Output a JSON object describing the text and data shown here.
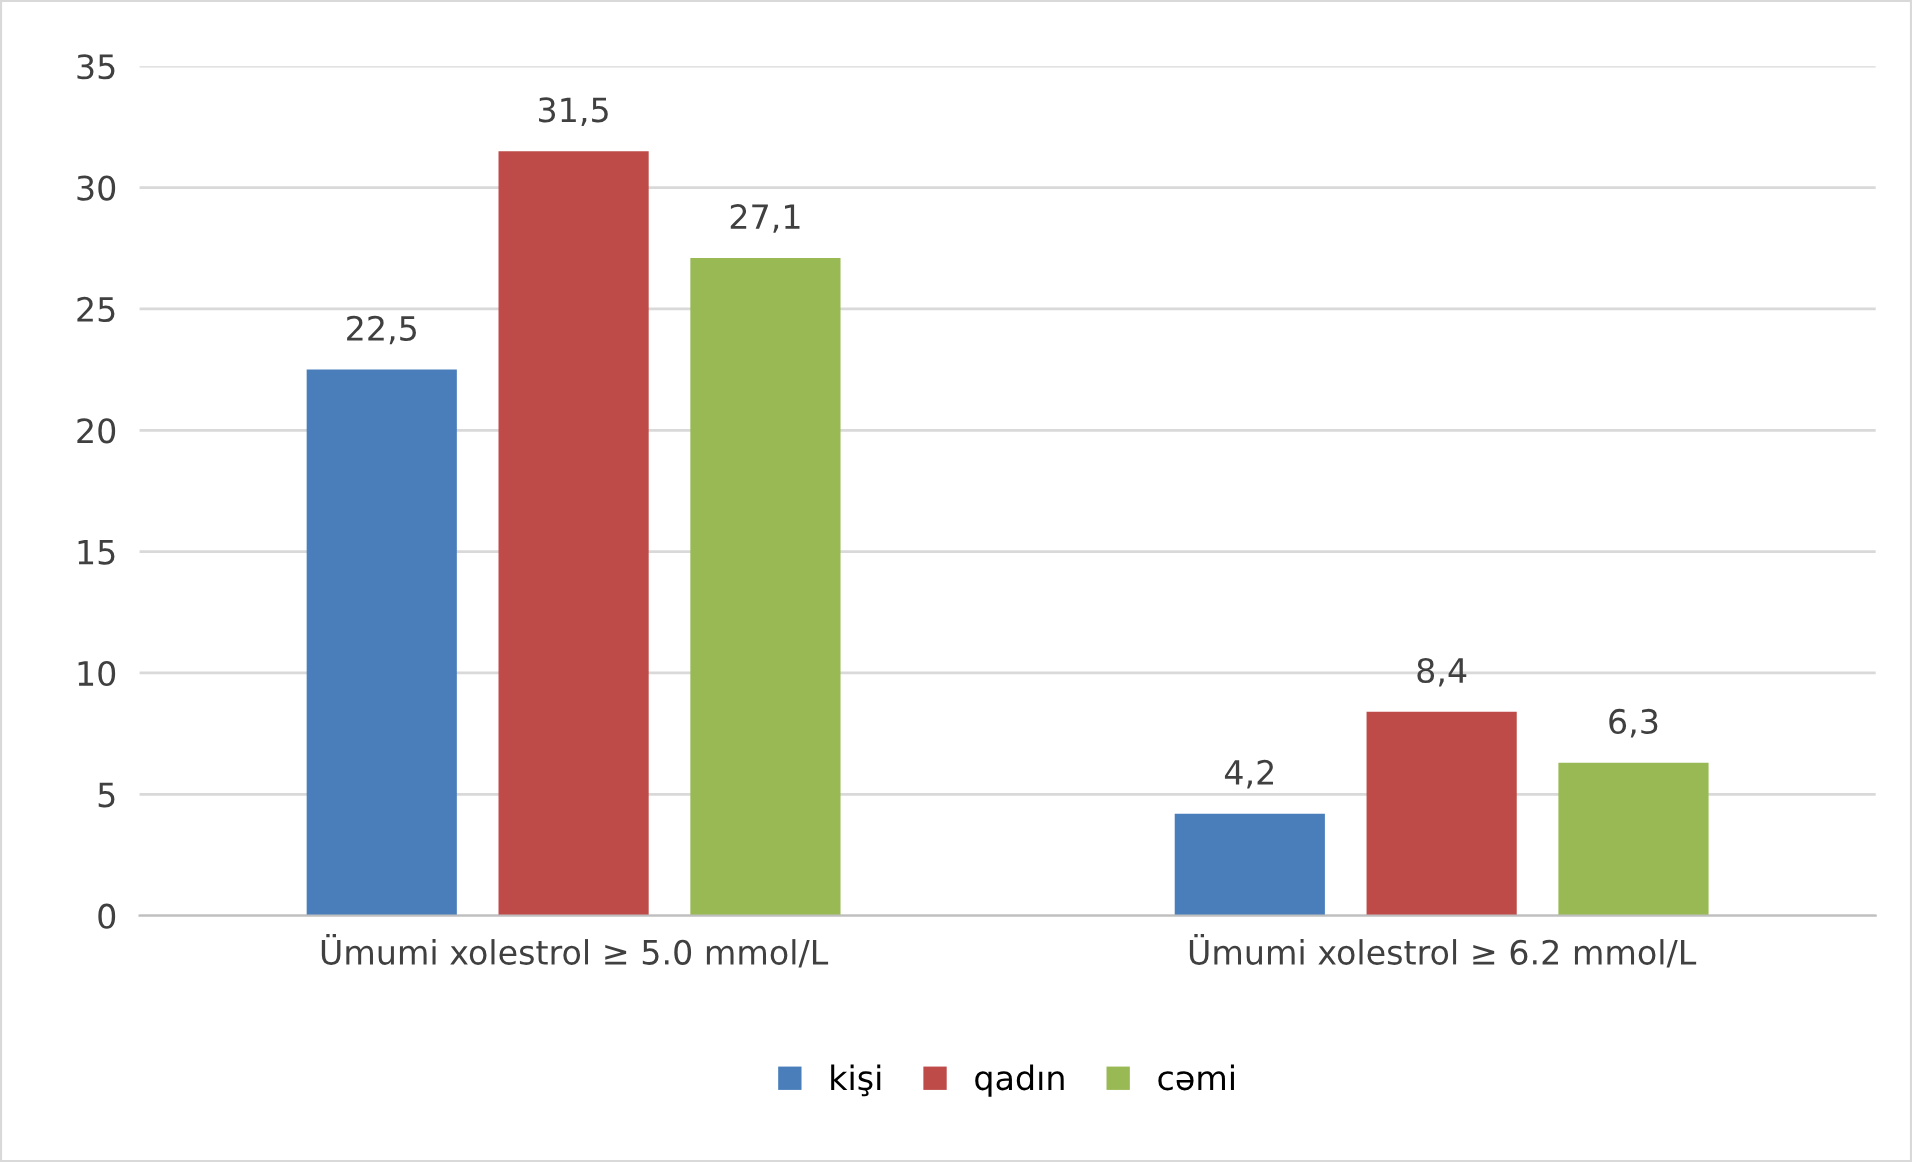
{
  "chart_data": {
    "type": "bar",
    "categories": [
      "Ümumi xolestrol ≥ 5.0 mmol/L",
      "Ümumi xolestrol ≥ 6.2 mmol/L"
    ],
    "series": [
      {
        "name": "kişi",
        "color": "#4a7ebb",
        "values": [
          22.5,
          4.2
        ],
        "value_labels": [
          "22,5",
          "4,2"
        ]
      },
      {
        "name": "qadın",
        "color": "#be4b48",
        "values": [
          31.5,
          8.4
        ],
        "value_labels": [
          "31,5",
          "8,4"
        ]
      },
      {
        "name": "cəmi",
        "color": "#98b954",
        "values": [
          27.1,
          6.3
        ],
        "value_labels": [
          "27,1",
          "6,3"
        ]
      }
    ],
    "ylim": [
      0,
      35
    ],
    "yticks": [
      0,
      5,
      10,
      15,
      20,
      25,
      30,
      35
    ],
    "grid": "y",
    "legend": "bottom"
  }
}
